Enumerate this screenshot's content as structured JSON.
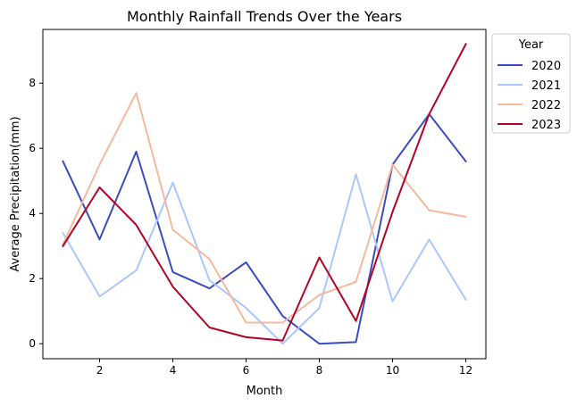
{
  "chart_data": {
    "type": "line",
    "title": "Monthly Rainfall Trends Over the Years",
    "xlabel": "Month",
    "ylabel": "Average Precipitation(mm)",
    "x": [
      1,
      2,
      3,
      4,
      5,
      6,
      7,
      8,
      9,
      10,
      11,
      12
    ],
    "xlim": [
      0.45,
      12.55
    ],
    "ylim": [
      -0.46,
      9.65
    ],
    "xticks": [
      2,
      4,
      6,
      8,
      10,
      12
    ],
    "yticks": [
      0,
      2,
      4,
      6,
      8
    ],
    "grid": false,
    "legend": {
      "title": "Year",
      "placement": "outside-right"
    },
    "series": [
      {
        "name": "2020",
        "color": "#3b4cc0",
        "values": [
          5.6,
          3.2,
          5.9,
          2.2,
          1.7,
          2.5,
          0.85,
          0.0,
          0.05,
          5.5,
          7.05,
          5.6
        ]
      },
      {
        "name": "2021",
        "color": "#aac7fd",
        "values": [
          3.4,
          1.45,
          2.25,
          4.95,
          1.95,
          1.1,
          0.0,
          1.1,
          5.2,
          1.3,
          3.2,
          1.35
        ]
      },
      {
        "name": "2022",
        "color": "#f7b89c",
        "values": [
          3.05,
          5.5,
          7.7,
          3.5,
          2.6,
          0.65,
          0.65,
          1.5,
          1.9,
          5.5,
          4.1,
          3.9
        ]
      },
      {
        "name": "2023",
        "color": "#b40426",
        "values": [
          3.0,
          4.8,
          3.65,
          1.75,
          0.5,
          0.2,
          0.1,
          2.65,
          0.7,
          4.05,
          7.05,
          9.2
        ]
      }
    ]
  }
}
